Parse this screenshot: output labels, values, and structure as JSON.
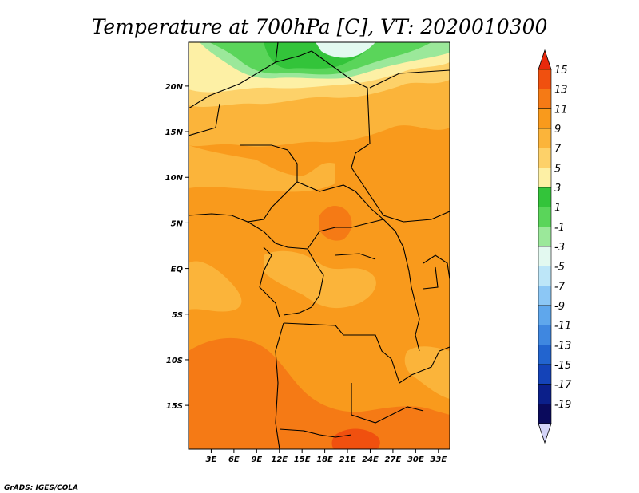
{
  "title": "Temperature at 700hPa [C], VT: 2020010300",
  "credit": "GrADS: IGES/COLA",
  "map": {
    "lon_labels": [
      "3E",
      "6E",
      "9E",
      "12E",
      "15E",
      "18E",
      "21E",
      "24E",
      "27E",
      "30E",
      "33E"
    ],
    "lon_values": [
      3,
      6,
      9,
      12,
      15,
      18,
      21,
      24,
      27,
      30,
      33
    ],
    "lat_labels": [
      "20N",
      "15N",
      "10N",
      "5N",
      "EQ",
      "5S",
      "10S",
      "15S"
    ],
    "lat_values": [
      20,
      15,
      10,
      5,
      0,
      -5,
      -10,
      -15
    ],
    "lon_range": [
      0,
      34.5
    ],
    "lat_range": [
      -19.8,
      24.8
    ]
  },
  "colorbar": {
    "labels": [
      "15",
      "13",
      "11",
      "9",
      "7",
      "5",
      "3",
      "1",
      "-1",
      "-3",
      "-5",
      "-7",
      "-9",
      "-11",
      "-13",
      "-15",
      "-17",
      "-19"
    ],
    "colors": [
      "#e8290c",
      "#f0500f",
      "#f57a15",
      "#f99a1c",
      "#fbb43a",
      "#fdd169",
      "#fdf0a5",
      "#33c43a",
      "#5ad55a",
      "#9be89a",
      "#e3f9f0",
      "#bde6f8",
      "#8cc7f5",
      "#5fa7ec",
      "#3f87e0",
      "#2264cf",
      "#1443b8",
      "#0b1f8a",
      "#0a0a5c"
    ],
    "upper_arrow_color": "#e8290c",
    "lower_arrow_color": "#d4d4f8"
  },
  "field_colors": {
    "green": "#5ad55a",
    "dark_green": "#33c43a",
    "light_green": "#9be89a",
    "pale_cyan": "#e3f9f0",
    "pale_yellow": "#fdf0a5",
    "light_yellow": "#fdd169",
    "light_orange": "#fbb43a",
    "orange": "#f99a1c",
    "dark_orange": "#f57a15",
    "red_orange": "#f0500f",
    "red": "#e8290c"
  }
}
